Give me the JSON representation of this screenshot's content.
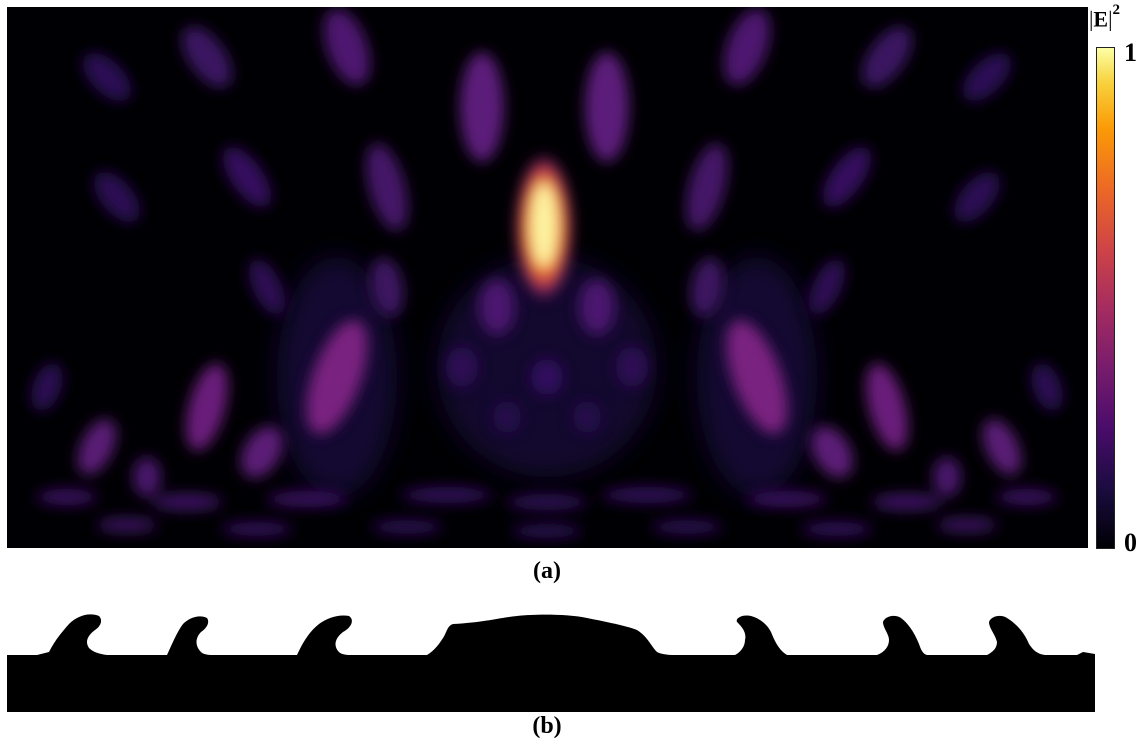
{
  "figure": {
    "panel_a": {
      "label": "(a)",
      "colorbar": {
        "title_symbol": "E",
        "title_exponent": "2",
        "max_label": "1",
        "min_label": "0",
        "colormap": "inferno"
      }
    },
    "panel_b": {
      "label": "(b)"
    }
  }
}
